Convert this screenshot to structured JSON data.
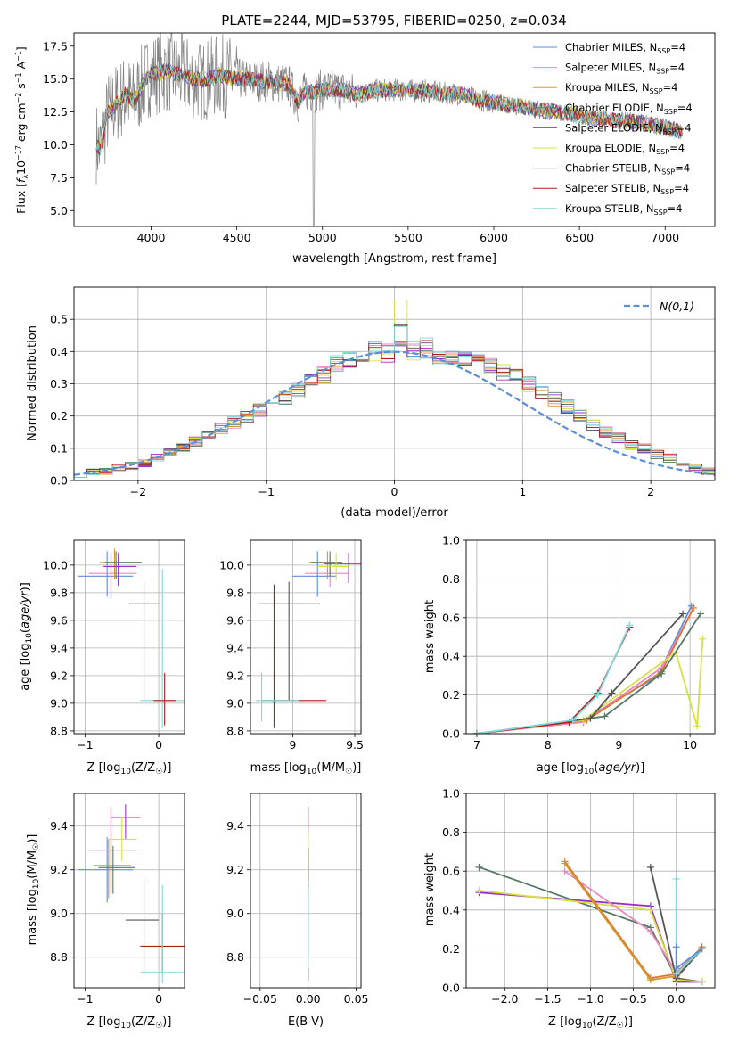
{
  "figure": {
    "title": "PLATE=2244, MJD=53795, FIBERID=0250, z=0.034"
  },
  "colors": {
    "palette": [
      "#5b8fd6",
      "#e986c0",
      "#d29a2a",
      "#557a63",
      "#9b2fc9",
      "#d6e043",
      "#555555",
      "#b21b1b",
      "#7fd8dc",
      "#e3762f"
    ],
    "grid": "#b0b0b0",
    "observed": "#808080"
  },
  "chart_data": [
    {
      "id": "spectrum",
      "type": "line",
      "title": "PLATE=2244, MJD=53795, FIBERID=0250, z=0.034",
      "xlabel": "wavelength [Angstrom, rest frame]",
      "ylabel": "Flux [f_λ 10^-17 erg cm^-2 s^-1 A^-1]",
      "xlim": [
        3550,
        7290
      ],
      "ylim": [
        3.8,
        18.5
      ],
      "xticks": [
        4000,
        4500,
        5000,
        5500,
        6000,
        6500,
        7000
      ],
      "yticks": [
        5.0,
        7.5,
        10.0,
        12.5,
        15.0,
        17.5
      ],
      "grid": false,
      "legend_position": "top-right",
      "x": [
        3680,
        3700,
        3750,
        3800,
        3850,
        3900,
        3950,
        4000,
        4100,
        4200,
        4300,
        4400,
        4500,
        4600,
        4700,
        4800,
        4861,
        4900,
        4950,
        5000,
        5100,
        5200,
        5300,
        5400,
        5500,
        5600,
        5700,
        5800,
        5900,
        6000,
        6100,
        6200,
        6300,
        6400,
        6500,
        6600,
        6700,
        6800,
        6900,
        7000,
        7100
      ],
      "model_flux": [
        10.2,
        9.6,
        12.5,
        13.2,
        13.8,
        13.3,
        14.6,
        15.4,
        15.6,
        15.2,
        14.9,
        15.3,
        15.0,
        14.9,
        14.8,
        14.6,
        13.2,
        14.1,
        14.0,
        14.2,
        14.2,
        13.9,
        14.1,
        14.2,
        14.1,
        14.1,
        13.9,
        13.9,
        13.4,
        13.3,
        13.0,
        12.8,
        12.6,
        12.5,
        12.2,
        12.0,
        11.9,
        11.8,
        11.6,
        11.3,
        11.0
      ],
      "series": [
        {
          "name": "Chabrier MILES, N_SSP=4",
          "label_main": "Chabrier MILES, N",
          "label_sub": "SSP",
          "label_end": "=4"
        },
        {
          "name": "Salpeter MILES, N_SSP=4",
          "label_main": "Salpeter MILES, N",
          "label_sub": "SSP",
          "label_end": "=4"
        },
        {
          "name": "Kroupa MILES, N_SSP=4",
          "label_main": "Kroupa MILES, N",
          "label_sub": "SSP",
          "label_end": "=4"
        },
        {
          "name": "Chabrier ELODIE, N_SSP=4",
          "label_main": "Chabrier ELODIE, N",
          "label_sub": "SSP",
          "label_end": "=4"
        },
        {
          "name": "Salpeter ELODIE, N_SSP=4",
          "label_main": "Salpeter ELODIE, N",
          "label_sub": "SSP",
          "label_end": "=4"
        },
        {
          "name": "Kroupa ELODIE, N_SSP=4",
          "label_main": "Kroupa ELODIE, N",
          "label_sub": "SSP",
          "label_end": "=4"
        },
        {
          "name": "Chabrier STELIB, N_SSP=4",
          "label_main": "Chabrier STELIB, N",
          "label_sub": "SSP",
          "label_end": "=4"
        },
        {
          "name": "Salpeter STELIB, N_SSP=4",
          "label_main": "Salpeter STELIB, N",
          "label_sub": "SSP",
          "label_end": "=4"
        },
        {
          "name": "Kroupa STELIB, N_SSP=4",
          "label_main": "Kroupa STELIB, N",
          "label_sub": "SSP",
          "label_end": "=4"
        }
      ]
    },
    {
      "id": "residuals",
      "type": "line",
      "xlabel": "(data-model)/error",
      "ylabel": "Normed distribution",
      "xlim": [
        -2.5,
        2.5
      ],
      "ylim": [
        0,
        0.6
      ],
      "xticks": [
        -2,
        -1,
        0,
        1,
        2
      ],
      "yticks": [
        0.0,
        0.1,
        0.2,
        0.3,
        0.4,
        0.5
      ],
      "grid": true,
      "legend_position": "top-right",
      "gaussian_label": "N(0,1)",
      "bin_edges": [
        -2.5,
        -2.4,
        -2.3,
        -2.2,
        -2.1,
        -2.0,
        -1.9,
        -1.8,
        -1.7,
        -1.6,
        -1.5,
        -1.4,
        -1.3,
        -1.2,
        -1.1,
        -1.0,
        -0.9,
        -0.8,
        -0.7,
        -0.6,
        -0.5,
        -0.4,
        -0.3,
        -0.2,
        -0.1,
        0.0,
        0.1,
        0.2,
        0.3,
        0.4,
        0.5,
        0.6,
        0.7,
        0.8,
        0.9,
        1.0,
        1.1,
        1.2,
        1.3,
        1.4,
        1.5,
        1.6,
        1.7,
        1.8,
        1.9,
        2.0,
        2.1,
        2.2,
        2.3,
        2.4,
        2.5
      ],
      "histogram_base": [
        0.02,
        0.025,
        0.03,
        0.04,
        0.045,
        0.055,
        0.07,
        0.09,
        0.1,
        0.12,
        0.14,
        0.16,
        0.18,
        0.2,
        0.22,
        0.24,
        0.26,
        0.28,
        0.31,
        0.33,
        0.36,
        0.38,
        0.37,
        0.4,
        0.4,
        0.45,
        0.4,
        0.41,
        0.39,
        0.38,
        0.37,
        0.36,
        0.35,
        0.34,
        0.32,
        0.3,
        0.27,
        0.25,
        0.23,
        0.2,
        0.17,
        0.15,
        0.13,
        0.11,
        0.1,
        0.08,
        0.07,
        0.05,
        0.04,
        0.03
      ],
      "spike": {
        "series": 5,
        "bin": 25,
        "value": 0.56
      }
    },
    {
      "id": "age-vs-Z",
      "type": "scatter",
      "xlabel": "Z [log10(Z/Z_sun)]",
      "xlabel_main": "Z [log",
      "xlabel_sub": "10",
      "xlabel_end": "(Z/Z",
      "ylabel": "age [log10(age/yr)]",
      "xlim": [
        -1.15,
        0.35
      ],
      "ylim": [
        8.78,
        10.18
      ],
      "xticks": [
        -1,
        0
      ],
      "yticks": [
        8.8,
        9.0,
        9.2,
        9.4,
        9.6,
        9.8,
        10.0
      ],
      "grid": true,
      "points": [
        {
          "series": 0,
          "x": -0.7,
          "y": 9.92,
          "xerr": [
            0.4,
            0.35
          ],
          "yerr": [
            0.15,
            0.18
          ]
        },
        {
          "series": 1,
          "x": -0.65,
          "y": 9.94,
          "xerr": [
            0.3,
            0.35
          ],
          "yerr": [
            0.18,
            0.15
          ]
        },
        {
          "series": 2,
          "x": -0.6,
          "y": 10.02,
          "xerr": [
            0.2,
            0.35
          ],
          "yerr": [
            0.12,
            0.1
          ]
        },
        {
          "series": 3,
          "x": -0.58,
          "y": 10.02,
          "xerr": [
            0.15,
            0.35
          ],
          "yerr": [
            0.12,
            0.08
          ]
        },
        {
          "series": 4,
          "x": -0.55,
          "y": 9.99,
          "xerr": [
            0.2,
            0.25
          ],
          "yerr": [
            0.14,
            0.1
          ]
        },
        {
          "series": 6,
          "x": -0.2,
          "y": 9.72,
          "xerr": [
            0.2,
            0.2
          ],
          "yerr": [
            0.7,
            0.16
          ]
        },
        {
          "series": 8,
          "x": 0.05,
          "y": 9.02,
          "xerr": [
            0.3,
            0.3
          ],
          "yerr": [
            0.2,
            0.95
          ]
        },
        {
          "series": 7,
          "x": 0.08,
          "y": 9.02,
          "xerr": [
            0.15,
            0.15
          ],
          "yerr": [
            0.18,
            0.2
          ]
        }
      ]
    },
    {
      "id": "age-vs-mass",
      "type": "scatter",
      "xlabel": "mass [log10(M/M_sun)]",
      "xlabel_main": "mass [log",
      "xlabel_sub": "10",
      "xlabel_end": "(M/M",
      "ylabel": "",
      "xlim": [
        8.66,
        9.55
      ],
      "ylim": [
        8.78,
        10.18
      ],
      "xticks": [
        9.0,
        9.5
      ],
      "yticks": [
        8.8,
        9.0,
        9.2,
        9.4,
        9.6,
        9.8,
        10.0
      ],
      "grid": true,
      "points": [
        {
          "series": 0,
          "x": 9.2,
          "y": 9.92,
          "xerr": [
            0.2,
            0.15
          ],
          "yerr": [
            0.15,
            0.18
          ]
        },
        {
          "series": 1,
          "x": 9.3,
          "y": 9.94,
          "xerr": [
            0.2,
            0.15
          ],
          "yerr": [
            0.1,
            0.12
          ]
        },
        {
          "series": 2,
          "x": 9.28,
          "y": 10.02,
          "xerr": [
            0.15,
            0.12
          ],
          "yerr": [
            0.12,
            0.08
          ]
        },
        {
          "series": 3,
          "x": 9.3,
          "y": 10.02,
          "xerr": [
            0.15,
            0.1
          ],
          "yerr": [
            0.1,
            0.08
          ]
        },
        {
          "series": 4,
          "x": 9.45,
          "y": 10.01,
          "xerr": [
            0.2,
            0.1
          ],
          "yerr": [
            0.14,
            0.08
          ]
        },
        {
          "series": 5,
          "x": 9.35,
          "y": 9.99,
          "xerr": [
            0.15,
            0.1
          ],
          "yerr": [
            0.1,
            0.1
          ]
        },
        {
          "series": 6,
          "x": 8.97,
          "y": 9.72,
          "xerr": [
            0.25,
            0.25
          ],
          "yerr": [
            0.7,
            0.16
          ]
        },
        {
          "series": 7,
          "x": 8.85,
          "y": 9.02,
          "xerr": [
            0.1,
            0.42
          ],
          "yerr": [
            0.2,
            0.84
          ]
        },
        {
          "series": 8,
          "x": 8.75,
          "y": 9.02,
          "xerr": [
            0.05,
            0.3
          ],
          "yerr": [
            0.15,
            0.2
          ]
        }
      ]
    },
    {
      "id": "weight-vs-age",
      "type": "line",
      "xlabel": "age [log10(age/yr)]",
      "xlabel_main": "age  [log",
      "xlabel_sub": "10",
      "xlabel_end": "(age/yr)]",
      "ylabel": "mass weight",
      "xlim": [
        6.85,
        10.35
      ],
      "ylim": [
        0,
        1.0
      ],
      "xticks": [
        7,
        8,
        9,
        10
      ],
      "yticks": [
        0.0,
        0.2,
        0.4,
        0.6,
        0.8,
        1.0
      ],
      "grid": true,
      "series": [
        {
          "series": 0,
          "x": [
            7.0,
            8.5,
            9.55,
            10.02
          ],
          "y": [
            0.0,
            0.07,
            0.3,
            0.66
          ]
        },
        {
          "series": 1,
          "x": [
            7.0,
            8.5,
            9.6,
            10.05
          ],
          "y": [
            0.0,
            0.06,
            0.34,
            0.65
          ]
        },
        {
          "series": 9,
          "x": [
            7.0,
            8.55,
            9.6,
            10.05
          ],
          "y": [
            0.0,
            0.07,
            0.32,
            0.65
          ]
        },
        {
          "series": 5,
          "x": [
            7.0,
            8.5,
            9.8,
            10.1,
            10.18
          ],
          "y": [
            0.0,
            0.07,
            0.42,
            0.04,
            0.49
          ]
        },
        {
          "series": 3,
          "x": [
            7.0,
            8.8,
            9.6,
            10.15
          ],
          "y": [
            0.0,
            0.09,
            0.31,
            0.62
          ]
        },
        {
          "series": 6,
          "x": [
            7.0,
            8.6,
            8.9,
            9.9
          ],
          "y": [
            0.0,
            0.08,
            0.21,
            0.62
          ]
        },
        {
          "series": 7,
          "x": [
            7.0,
            8.3,
            8.7,
            9.15
          ],
          "y": [
            0.0,
            0.06,
            0.21,
            0.55
          ]
        },
        {
          "series": 8,
          "x": [
            7.0,
            8.35,
            8.7,
            9.15
          ],
          "y": [
            0.0,
            0.07,
            0.2,
            0.56
          ]
        }
      ]
    },
    {
      "id": "mass-vs-Z",
      "type": "scatter",
      "xlabel": "Z [log10(Z/Z_sun)]",
      "xlabel_main": "Z [log",
      "xlabel_sub": "10",
      "xlabel_end": "(Z/Z",
      "ylabel": "mass [log10(M/M_sun)]",
      "ylabel_main": "mass [log",
      "ylabel_sub": "10",
      "ylabel_end": "(M/M",
      "xlim": [
        -1.15,
        0.35
      ],
      "ylim": [
        8.66,
        9.55
      ],
      "xticks": [
        -1,
        0
      ],
      "yticks": [
        8.8,
        9.0,
        9.2,
        9.4
      ],
      "grid": true,
      "points": [
        {
          "series": 0,
          "x": -0.7,
          "y": 9.2,
          "xerr": [
            0.4,
            0.35
          ],
          "yerr": [
            0.15,
            0.15
          ]
        },
        {
          "series": 1,
          "x": -0.65,
          "y": 9.29,
          "xerr": [
            0.3,
            0.35
          ],
          "yerr": [
            0.2,
            0.2
          ]
        },
        {
          "series": 2,
          "x": -0.68,
          "y": 9.22,
          "xerr": [
            0.2,
            0.3
          ],
          "yerr": [
            0.15,
            0.12
          ]
        },
        {
          "series": 3,
          "x": -0.62,
          "y": 9.21,
          "xerr": [
            0.2,
            0.3
          ],
          "yerr": [
            0.12,
            0.1
          ]
        },
        {
          "series": 4,
          "x": -0.45,
          "y": 9.44,
          "xerr": [
            0.2,
            0.2
          ],
          "yerr": [
            0.1,
            0.06
          ]
        },
        {
          "series": 5,
          "x": -0.5,
          "y": 9.34,
          "xerr": [
            0.2,
            0.2
          ],
          "yerr": [
            0.1,
            0.1
          ]
        },
        {
          "series": 6,
          "x": -0.2,
          "y": 8.97,
          "xerr": [
            0.25,
            0.2
          ],
          "yerr": [
            0.25,
            0.18
          ]
        },
        {
          "series": 7,
          "x": 0.05,
          "y": 8.85,
          "xerr": [
            0.3,
            0.3
          ],
          "yerr": [
            0.12,
            0.15
          ]
        },
        {
          "series": 8,
          "x": 0.05,
          "y": 8.73,
          "xerr": [
            0.3,
            0.3
          ],
          "yerr": [
            0.05,
            0.4
          ]
        }
      ]
    },
    {
      "id": "mass-vs-ebv",
      "type": "scatter",
      "xlabel": "E(B-V)",
      "ylabel": "",
      "xlim": [
        -0.06,
        0.055
      ],
      "ylim": [
        8.66,
        9.55
      ],
      "xticks": [
        -0.05,
        0.0,
        0.05
      ],
      "yticks": [
        8.8,
        9.0,
        9.2,
        9.4
      ],
      "grid": true,
      "points": [
        {
          "series": 4,
          "x": 0.0,
          "y": 9.44,
          "xerr": [
            0,
            0
          ],
          "yerr": [
            0.08,
            0.05
          ]
        },
        {
          "series": 5,
          "x": 0.0,
          "y": 9.34,
          "xerr": [
            0,
            0
          ],
          "yerr": [
            0.1,
            0.05
          ]
        },
        {
          "series": 7,
          "x": 0.0,
          "y": 9.2,
          "xerr": [
            0,
            0
          ],
          "yerr": [
            0.08,
            0.1
          ]
        },
        {
          "series": 3,
          "x": 0.0,
          "y": 9.1,
          "xerr": [
            0,
            0
          ],
          "yerr": [
            0.3,
            0.2
          ]
        },
        {
          "series": 8,
          "x": 0.0,
          "y": 8.95,
          "xerr": [
            0,
            0
          ],
          "yerr": [
            0.25,
            0.2
          ]
        },
        {
          "series": 6,
          "x": 0.0,
          "y": 8.72,
          "xerr": [
            0,
            0
          ],
          "yerr": [
            0.03,
            0.03
          ]
        }
      ]
    },
    {
      "id": "weight-vs-Z",
      "type": "line",
      "xlabel": "Z [log10(Z/Z_sun)]",
      "xlabel_main": "Z [log",
      "xlabel_sub": "10",
      "xlabel_end": "(Z/Z",
      "ylabel": "mass weight",
      "xlim": [
        -2.45,
        0.45
      ],
      "ylim": [
        0,
        1.0
      ],
      "xticks": [
        -2.0,
        -1.5,
        -1.0,
        -0.5,
        0.0
      ],
      "yticks": [
        0.0,
        0.2,
        0.4,
        0.6,
        0.8,
        1.0
      ],
      "grid": true,
      "series": [
        {
          "series": 3,
          "x": [
            -2.3,
            -0.3,
            0.0,
            0.3
          ],
          "y": [
            0.62,
            0.31,
            0.05,
            0.03
          ]
        },
        {
          "series": 4,
          "x": [
            -2.3,
            -0.3,
            0.0,
            0.3
          ],
          "y": [
            0.49,
            0.42,
            0.03,
            0.03
          ]
        },
        {
          "series": 5,
          "x": [
            -2.3,
            -0.3,
            0.0,
            0.3
          ],
          "y": [
            0.5,
            0.4,
            0.04,
            0.03
          ]
        },
        {
          "series": 1,
          "x": [
            -1.3,
            -0.3,
            0.0,
            0.3
          ],
          "y": [
            0.6,
            0.29,
            0.08,
            0.2
          ]
        },
        {
          "series": 9,
          "x": [
            -1.3,
            -0.3,
            0.0,
            0.3
          ],
          "y": [
            0.65,
            0.05,
            0.07,
            0.21
          ]
        },
        {
          "series": 2,
          "x": [
            -1.3,
            -0.3,
            0.0,
            0.3
          ],
          "y": [
            0.64,
            0.04,
            0.06,
            0.2
          ]
        },
        {
          "series": 6,
          "x": [
            -0.3,
            0.0,
            0.3
          ],
          "y": [
            0.62,
            0.05,
            0.2
          ]
        },
        {
          "series": 8,
          "x": [
            0.0,
            0.0,
            0.3
          ],
          "y": [
            0.56,
            0.07,
            0.2
          ]
        },
        {
          "series": 0,
          "x": [
            0.0,
            0.0,
            0.3
          ],
          "y": [
            0.21,
            0.1,
            0.2
          ]
        }
      ]
    }
  ]
}
